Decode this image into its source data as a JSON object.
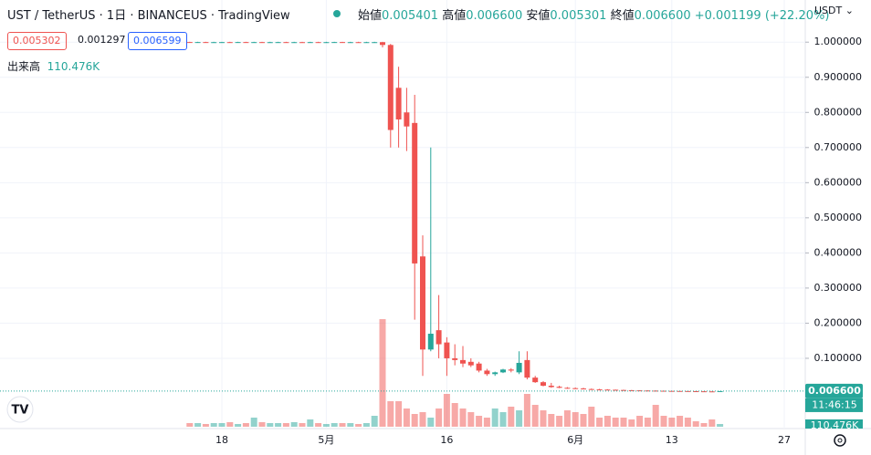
{
  "header": {
    "symbol": "UST / TetherUS · 1日 · BINANCEUS · TradingView",
    "open_label": "始値",
    "open": "0.005401",
    "high_label": "高値",
    "high": "0.006600",
    "low_label": "安値",
    "low": "0.005301",
    "close_label": "終値",
    "close": "0.006600",
    "change": "+0.001199",
    "change_pct": "(+22.20%)",
    "currency": "USDT",
    "bid": "0.005302",
    "spread": "0.001297",
    "ask": "0.006599",
    "volume_label": "出来高",
    "volume": "110.476K",
    "last_price": "0.006600",
    "countdown": "11:46:15"
  },
  "chart_data": {
    "type": "candlestick",
    "categories": [
      null,
      null,
      null,
      null,
      "18",
      null,
      null,
      null,
      null,
      null,
      null,
      null,
      null,
      null,
      null,
      null,
      null,
      "5月",
      null,
      null,
      null,
      null,
      null,
      null,
      null,
      null,
      null,
      null,
      null,
      null,
      null,
      null,
      "16",
      null,
      null,
      null,
      null,
      null,
      null,
      null,
      null,
      null,
      null,
      null,
      null,
      null,
      null,
      null,
      "6月",
      null,
      null,
      null,
      null,
      null,
      null,
      null,
      null,
      null,
      null,
      null,
      "13",
      null,
      null,
      null,
      null,
      null,
      null,
      null,
      null,
      null,
      null,
      null,
      null,
      null,
      "27"
    ],
    "open": [
      1.0003,
      1.0001,
      1.0002,
      0.9999,
      1.0,
      1.0001,
      1.0,
      1.0002,
      1.0,
      1.0001,
      0.9999,
      1.0,
      1.0001,
      1.0,
      1.0,
      0.9998,
      1.0001,
      1.0,
      1.0,
      1.0002,
      1.0,
      1.0,
      0.9999,
      1.0,
      1.0,
      0.992,
      0.87,
      0.8,
      0.77,
      0.39,
      0.125,
      0.18,
      0.145,
      0.1,
      0.095,
      0.09,
      0.085,
      0.065,
      0.055,
      0.06,
      0.068,
      0.06,
      0.095,
      0.045,
      0.032,
      0.022,
      0.019,
      0.016,
      0.015,
      0.014,
      0.0125,
      0.0115,
      0.011,
      0.0105,
      0.0098,
      0.0092,
      0.0088,
      0.0084,
      0.008,
      0.0076,
      0.0072,
      0.007,
      0.0068,
      0.0064,
      0.0061,
      0.0058,
      0.005401,
      null,
      null,
      null,
      null,
      null,
      null,
      null,
      null
    ],
    "high": [
      1.001,
      1.001,
      1.001,
      1.001,
      1.001,
      1.001,
      1.001,
      1.001,
      1.001,
      1.001,
      1.001,
      1.001,
      1.001,
      1.001,
      1.001,
      1.001,
      1.001,
      1.001,
      1.001,
      1.001,
      1.001,
      1.001,
      1.001,
      1.001,
      1.001,
      0.995,
      0.93,
      0.87,
      0.85,
      0.45,
      0.7,
      0.28,
      0.16,
      0.14,
      0.135,
      0.1,
      0.09,
      0.07,
      0.062,
      0.07,
      0.072,
      0.12,
      0.12,
      0.05,
      0.035,
      0.03,
      0.022,
      0.018,
      0.017,
      0.016,
      0.014,
      0.013,
      0.012,
      0.011,
      0.0105,
      0.0098,
      0.0092,
      0.0088,
      0.0085,
      0.008,
      0.0078,
      0.0074,
      0.0071,
      0.0068,
      0.0064,
      0.0061,
      0.0066,
      null,
      null,
      null,
      null,
      null,
      null,
      null,
      null
    ],
    "low": [
      0.999,
      0.999,
      0.999,
      0.999,
      0.999,
      0.999,
      0.999,
      0.999,
      0.999,
      0.999,
      0.999,
      0.999,
      0.999,
      0.999,
      0.999,
      0.999,
      0.999,
      0.999,
      0.999,
      0.999,
      0.999,
      0.999,
      0.999,
      0.999,
      0.985,
      0.7,
      0.7,
      0.69,
      0.21,
      0.05,
      0.12,
      0.1,
      0.05,
      0.08,
      0.075,
      0.075,
      0.06,
      0.05,
      0.05,
      0.058,
      0.06,
      0.055,
      0.04,
      0.03,
      0.02,
      0.016,
      0.015,
      0.013,
      0.013,
      0.012,
      0.011,
      0.0105,
      0.01,
      0.0092,
      0.009,
      0.0085,
      0.008,
      0.0076,
      0.0072,
      0.007,
      0.0068,
      0.0065,
      0.0062,
      0.0059,
      0.0056,
      0.0053,
      0.005301,
      null,
      null,
      null,
      null,
      null,
      null,
      null,
      null
    ],
    "close": [
      1.0001,
      1.0002,
      0.9999,
      1.0,
      1.0001,
      1.0,
      1.0002,
      1.0,
      1.0001,
      0.9999,
      1.0,
      1.0001,
      1.0,
      1.0,
      0.9998,
      1.0001,
      1.0,
      1.0,
      1.0002,
      1.0,
      1.0,
      0.9999,
      1.0,
      1.0,
      0.992,
      0.75,
      0.78,
      0.76,
      0.37,
      0.125,
      0.17,
      0.14,
      0.1,
      0.095,
      0.085,
      0.08,
      0.065,
      0.055,
      0.06,
      0.068,
      0.065,
      0.087,
      0.045,
      0.032,
      0.022,
      0.018,
      0.016,
      0.015,
      0.014,
      0.0125,
      0.0115,
      0.011,
      0.0105,
      0.0098,
      0.0092,
      0.0088,
      0.0084,
      0.008,
      0.0076,
      0.0072,
      0.007,
      0.0068,
      0.0064,
      0.0061,
      0.0058,
      0.0054,
      0.0066,
      null,
      null,
      null,
      null,
      null,
      null,
      null,
      null
    ],
    "volume": [
      148000,
      148000,
      111000,
      148000,
      148000,
      185000,
      111000,
      148000,
      370000,
      185000,
      148000,
      148000,
      148000,
      185000,
      148000,
      296000,
      148000,
      111000,
      148000,
      148000,
      148000,
      111000,
      148000,
      444000,
      4366000,
      1036000,
      1036000,
      740000,
      518000,
      592000,
      370000,
      740000,
      1332000,
      962000,
      740000,
      592000,
      444000,
      370000,
      740000,
      592000,
      814000,
      666000,
      1332000,
      888000,
      666000,
      518000,
      444000,
      666000,
      592000,
      518000,
      814000,
      370000,
      444000,
      370000,
      370000,
      296000,
      444000,
      370000,
      888000,
      444000,
      370000,
      444000,
      370000,
      222000,
      148000,
      296000,
      110476,
      null,
      null,
      null,
      null,
      null,
      null,
      null,
      null
    ],
    "ylim": [
      -0.1,
      1.12
    ],
    "yticks": [
      {
        "value": 0.1,
        "label": "0.100000"
      },
      {
        "value": 0.2,
        "label": "0.200000"
      },
      {
        "value": 0.3,
        "label": "0.300000"
      },
      {
        "value": 0.4,
        "label": "0.400000"
      },
      {
        "value": 0.5,
        "label": "0.500000"
      },
      {
        "value": 0.6,
        "label": "0.600000"
      },
      {
        "value": 0.7,
        "label": "0.700000"
      },
      {
        "value": 0.8,
        "label": "0.800000"
      },
      {
        "value": 0.9,
        "label": "0.900000"
      },
      {
        "value": 1.0,
        "label": "1.000000"
      }
    ],
    "up_color": "#26a69a",
    "down_color": "#ef5350",
    "grid": true
  }
}
